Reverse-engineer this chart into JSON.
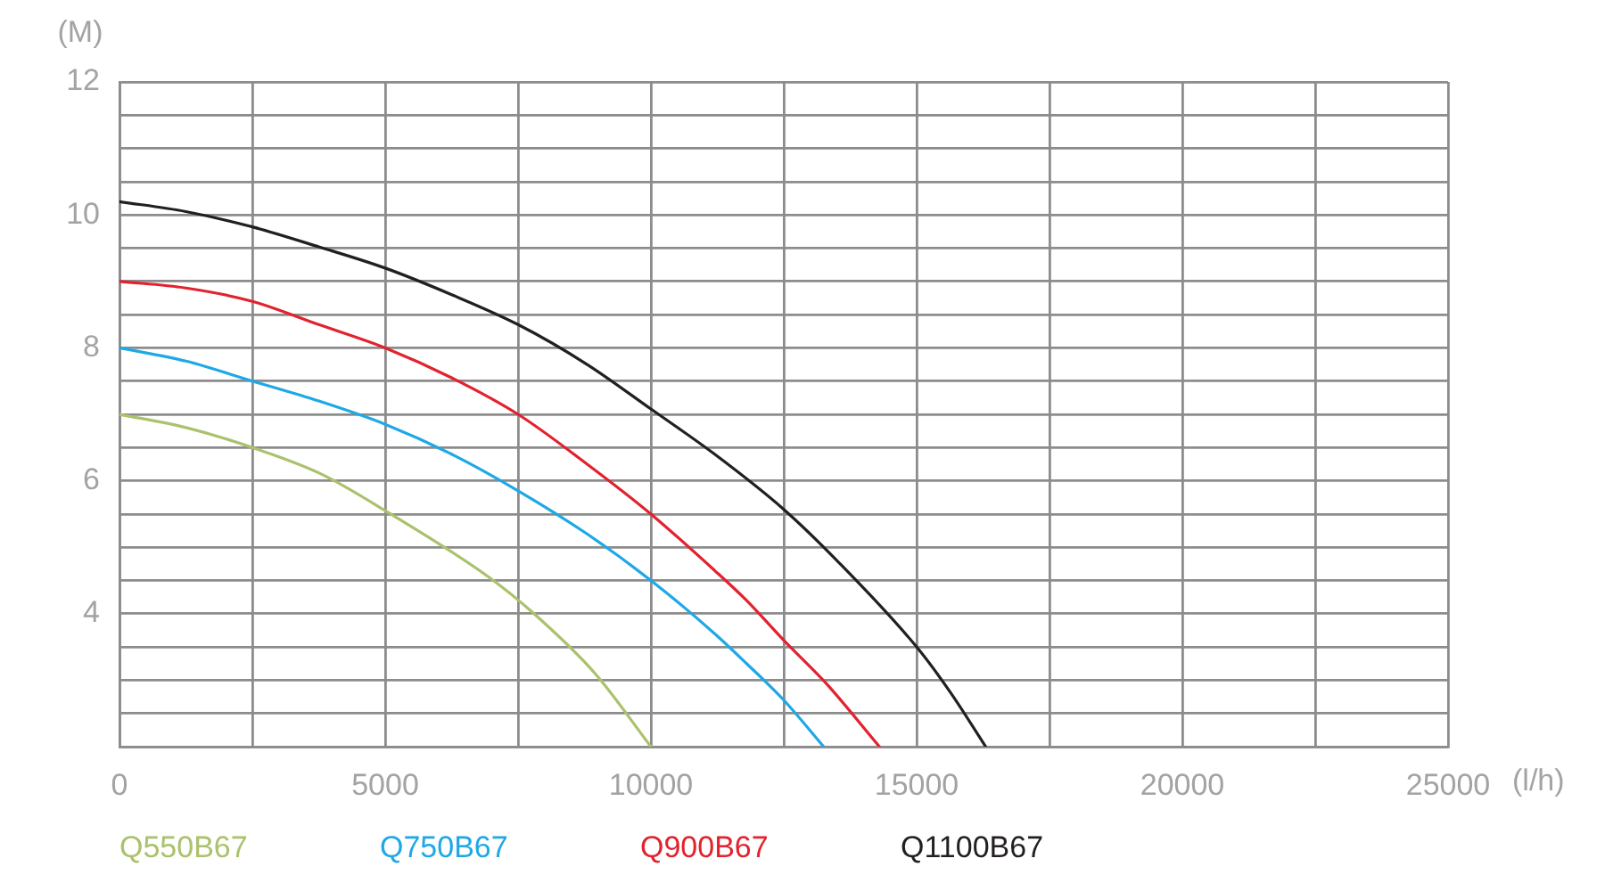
{
  "chart_data": {
    "type": "line",
    "xlabel": "(l/h)",
    "ylabel": "(M)",
    "xlim": [
      0,
      25000
    ],
    "xticks": [
      0,
      {
        "value": 2500,
        "label": null
      },
      5000,
      {
        "value": 7500,
        "label": null
      },
      10000,
      {
        "value": 12500,
        "label": null
      },
      15000,
      {
        "value": 17500,
        "label": null
      },
      20000,
      {
        "value": 22500,
        "label": null
      },
      25000
    ],
    "ylim": [
      2,
      12
    ],
    "yticks": [
      {
        "value": 2,
        "label": null
      },
      {
        "value": 2.5,
        "label": null
      },
      {
        "value": 3,
        "label": null
      },
      {
        "value": 3.5,
        "label": null
      },
      4,
      {
        "value": 4.5,
        "label": null
      },
      {
        "value": 5,
        "label": null
      },
      {
        "value": 5.5,
        "label": null
      },
      6,
      {
        "value": 6.5,
        "label": null
      },
      {
        "value": 7,
        "label": null
      },
      {
        "value": 7.5,
        "label": null
      },
      8,
      {
        "value": 8.5,
        "label": null
      },
      {
        "value": 9,
        "label": null
      },
      {
        "value": 9.5,
        "label": null
      },
      10,
      {
        "value": 10.5,
        "label": null
      },
      {
        "value": 11,
        "label": null
      },
      {
        "value": 11.5,
        "label": null
      },
      12
    ],
    "grid": true,
    "legend": "bottom",
    "marker": "none",
    "line_style": "solid",
    "series": [
      {
        "name": "Q550B67",
        "color": "#aac26c",
        "x": [
          0,
          1250,
          2500,
          3800,
          5000,
          6950,
          7800,
          8950,
          10000
        ],
        "values": [
          7.0,
          6.8,
          6.5,
          6.1,
          5.55,
          4.55,
          4.0,
          3.1,
          2.0
        ]
      },
      {
        "name": "Q750B67",
        "color": "#1ea8e6",
        "x": [
          0,
          1250,
          2500,
          3750,
          5000,
          6250,
          7500,
          8800,
          10000,
          11200,
          11800,
          12500,
          13250
        ],
        "values": [
          8.0,
          7.8,
          7.5,
          7.2,
          6.85,
          6.4,
          5.85,
          5.2,
          4.5,
          3.7,
          3.25,
          2.7,
          2.0
        ]
      },
      {
        "name": "Q900B67",
        "color": "#e2222e",
        "x": [
          0,
          1250,
          2500,
          3750,
          5000,
          6250,
          7500,
          8800,
          10000,
          11200,
          11800,
          12500,
          13300,
          14300
        ],
        "values": [
          9.0,
          8.9,
          8.7,
          8.35,
          8.0,
          7.55,
          7.0,
          6.25,
          5.5,
          4.65,
          4.2,
          3.6,
          2.95,
          2.0
        ]
      },
      {
        "name": "Q1100B67",
        "color": "#231f20",
        "x": [
          0,
          1250,
          2500,
          3750,
          5000,
          6250,
          7500,
          8800,
          10000,
          11200,
          12500,
          13500,
          15000,
          15650,
          16300
        ],
        "values": [
          10.2,
          10.05,
          9.82,
          9.52,
          9.2,
          8.8,
          8.35,
          7.75,
          7.08,
          6.4,
          5.57,
          4.8,
          3.5,
          2.8,
          2.0
        ]
      }
    ]
  }
}
